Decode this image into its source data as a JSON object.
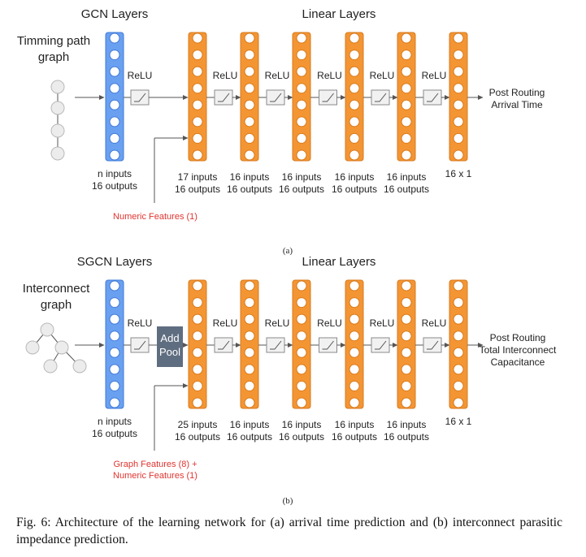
{
  "colors": {
    "gcn": "#6aa0f0",
    "gcn_stroke": "#3f7ad8",
    "linear": "#f39533",
    "linear_stroke": "#d97a1c",
    "pool": "#5f6d80",
    "accent_red": "#e0342f",
    "text": "#222222"
  },
  "diagram_a": {
    "title_gcn": "GCN Layers",
    "title_linear": "Linear Layers",
    "input_title": [
      "Timming path",
      "graph"
    ],
    "relu": "ReLU",
    "output": [
      "Post Routing",
      "Arrival Time"
    ],
    "gcn_label": [
      "n inputs",
      "16 outputs"
    ],
    "linear_labels": [
      [
        "17 inputs",
        "16 outputs"
      ],
      [
        "16 inputs",
        "16 outputs"
      ],
      [
        "16 inputs",
        "16 outputs"
      ],
      [
        "16 inputs",
        "16 outputs"
      ],
      [
        "16 inputs",
        "16 outputs"
      ]
    ],
    "final_label": "16 x 1",
    "features": [
      "Numeric Features (1)"
    ],
    "sublabel": "(a)"
  },
  "diagram_b": {
    "title_gcn": "SGCN Layers",
    "title_linear": "Linear Layers",
    "input_title": [
      "Interconnect",
      "graph"
    ],
    "relu": "ReLU",
    "pool": [
      "Add",
      "Pool"
    ],
    "output": [
      "Post Routing",
      "Total Interconnect",
      "Capacitance"
    ],
    "gcn_label": [
      "n inputs",
      "16 outputs"
    ],
    "linear_labels": [
      [
        "25 inputs",
        "16 outputs"
      ],
      [
        "16 inputs",
        "16 outputs"
      ],
      [
        "16 inputs",
        "16 outputs"
      ],
      [
        "16 inputs",
        "16 outputs"
      ],
      [
        "16 inputs",
        "16 outputs"
      ]
    ],
    "final_label": "16 x 1",
    "features": [
      "Graph Features (8) +",
      "Numeric Features (1)"
    ],
    "sublabel": "(b)"
  },
  "caption": "Fig. 6: Architecture of the learning network for (a) arrival time prediction and (b) interconnect parasitic impedance prediction."
}
